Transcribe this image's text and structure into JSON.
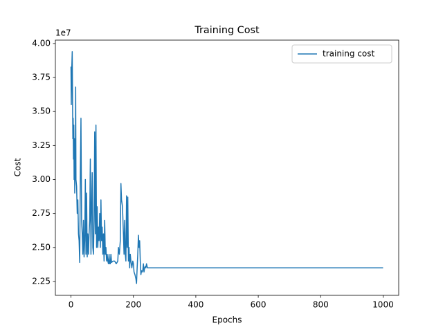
{
  "chart_data": {
    "type": "line",
    "title": "Training Cost",
    "xlabel": "Epochs",
    "ylabel": "Cost",
    "offset_label": "1e7",
    "x": [
      0,
      1,
      2,
      4,
      5,
      6,
      7,
      8,
      9,
      10,
      11,
      12,
      14,
      15,
      16,
      18,
      20,
      22,
      24,
      26,
      28,
      30,
      32,
      34,
      36,
      38,
      40,
      42,
      44,
      46,
      48,
      50,
      52,
      54,
      56,
      58,
      60,
      62,
      64,
      66,
      68,
      70,
      72,
      74,
      76,
      78,
      80,
      82,
      84,
      86,
      88,
      90,
      92,
      94,
      96,
      98,
      100,
      102,
      104,
      106,
      108,
      110,
      112,
      114,
      116,
      118,
      120,
      122,
      124,
      126,
      128,
      130,
      135,
      140,
      145,
      150,
      152,
      155,
      158,
      160,
      162,
      165,
      168,
      170,
      172,
      174,
      176,
      178,
      180,
      182,
      184,
      186,
      188,
      190,
      192,
      195,
      198,
      200,
      202,
      205,
      208,
      210,
      212,
      214,
      216,
      218,
      220,
      222,
      224,
      226,
      228,
      230,
      232,
      234,
      236,
      238,
      240,
      242,
      245,
      250,
      400,
      600,
      800,
      1000
    ],
    "series": [
      {
        "name": "training cost",
        "color": "#1f77b4",
        "values": [
          3.83,
          3.55,
          3.78,
          3.94,
          3.6,
          3.3,
          3.45,
          3.15,
          3.4,
          3.0,
          3.3,
          2.9,
          3.15,
          3.68,
          3.0,
          2.95,
          2.75,
          2.85,
          2.6,
          2.55,
          2.39,
          3.05,
          3.45,
          2.7,
          2.6,
          2.45,
          2.7,
          2.43,
          2.55,
          3.0,
          2.45,
          2.9,
          2.43,
          2.6,
          2.45,
          2.6,
          2.7,
          3.15,
          2.45,
          2.8,
          3.05,
          2.5,
          2.45,
          2.7,
          3.35,
          2.6,
          3.4,
          2.5,
          2.8,
          2.5,
          2.65,
          2.55,
          2.75,
          2.5,
          2.85,
          2.55,
          2.65,
          2.45,
          2.6,
          2.4,
          2.7,
          2.45,
          2.5,
          2.4,
          2.45,
          2.4,
          2.38,
          2.45,
          2.38,
          2.38,
          2.45,
          2.39,
          2.4,
          2.4,
          2.38,
          2.4,
          2.5,
          2.45,
          2.55,
          2.97,
          2.85,
          2.8,
          2.6,
          2.45,
          2.7,
          2.45,
          2.4,
          2.88,
          2.5,
          2.87,
          2.4,
          2.5,
          2.35,
          2.45,
          2.4,
          2.35,
          2.4,
          2.38,
          2.32,
          2.3,
          2.27,
          2.235,
          2.35,
          2.45,
          2.59,
          2.5,
          2.55,
          2.4,
          2.3,
          2.33,
          2.32,
          2.33,
          2.38,
          2.32,
          2.35,
          2.36,
          2.35,
          2.38,
          2.35,
          2.35,
          2.35,
          2.35,
          2.35,
          2.35
        ]
      }
    ],
    "xlim": [
      -50,
      1050
    ],
    "xticks": [
      0,
      200,
      400,
      600,
      800,
      1000
    ],
    "ylim": [
      2.148,
      4.025
    ],
    "yticks": [
      2.25,
      {
        "value": 2.5,
        "label": "2.50"
      },
      2.75,
      {
        "value": 3.0,
        "label": "3.00"
      },
      3.25,
      {
        "value": 3.5,
        "label": "3.50"
      },
      3.75,
      {
        "value": 4.0,
        "label": "4.00"
      }
    ],
    "legend": "upper right",
    "grid": false
  }
}
